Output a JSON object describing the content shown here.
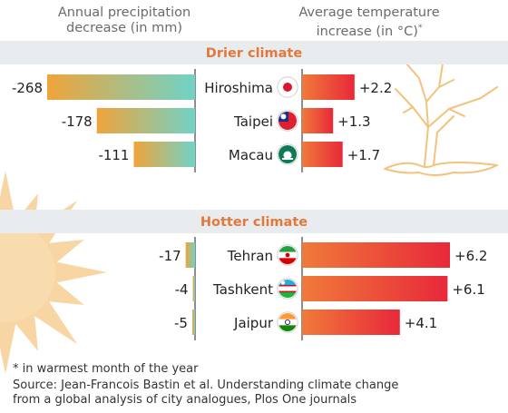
{
  "header": {
    "left_line1": "Annual precipitation",
    "left_line2": "decrease (in mm)",
    "right_line1": "Average temperature",
    "right_line2": "increase (in °C)",
    "right_asterisk": "*"
  },
  "footnote": {
    "note": "* in warmest month of the year",
    "source_line1": "Source: Jean-Francois Bastin et al. Understanding climate change",
    "source_line2": "from a global analysis of city analogues, Plos One journals"
  },
  "chart_data": {
    "type": "bar",
    "layout": "butterfly",
    "left_series": "Annual precipitation decrease (in mm)",
    "right_series": "Average temperature increase (in °C)",
    "groups": [
      {
        "label": "Drier climate",
        "cities": [
          {
            "name": "Hiroshima",
            "flag": "japan-flag",
            "precip": -268,
            "precip_label": "-268",
            "temp": 2.2,
            "temp_label": "+2.2"
          },
          {
            "name": "Taipei",
            "flag": "taiwan-flag",
            "precip": -178,
            "precip_label": "-178",
            "temp": 1.3,
            "temp_label": "+1.3"
          },
          {
            "name": "Macau",
            "flag": "macau-flag",
            "precip": -111,
            "precip_label": "-111",
            "temp": 1.7,
            "temp_label": "+1.7"
          }
        ]
      },
      {
        "label": "Hotter climate",
        "cities": [
          {
            "name": "Tehran",
            "flag": "iran-flag",
            "precip": -17,
            "precip_label": "-17",
            "temp": 6.2,
            "temp_label": "+6.2"
          },
          {
            "name": "Tashkent",
            "flag": "uzbekistan-flag",
            "precip": -4,
            "precip_label": "-4",
            "temp": 6.1,
            "temp_label": "+6.1"
          },
          {
            "name": "Jaipur",
            "flag": "india-flag",
            "precip": -5,
            "precip_label": "-5",
            "temp": 4.1,
            "temp_label": "+4.1"
          }
        ]
      }
    ],
    "colors": {
      "precip_start": "#f0a43a",
      "precip_end": "#6fd3c7",
      "temp_start": "#f07a3a",
      "temp_end": "#e8283a",
      "group_band": "#e9ecef",
      "group_text": "#e4783a",
      "drawing": "#f6cf94"
    }
  }
}
